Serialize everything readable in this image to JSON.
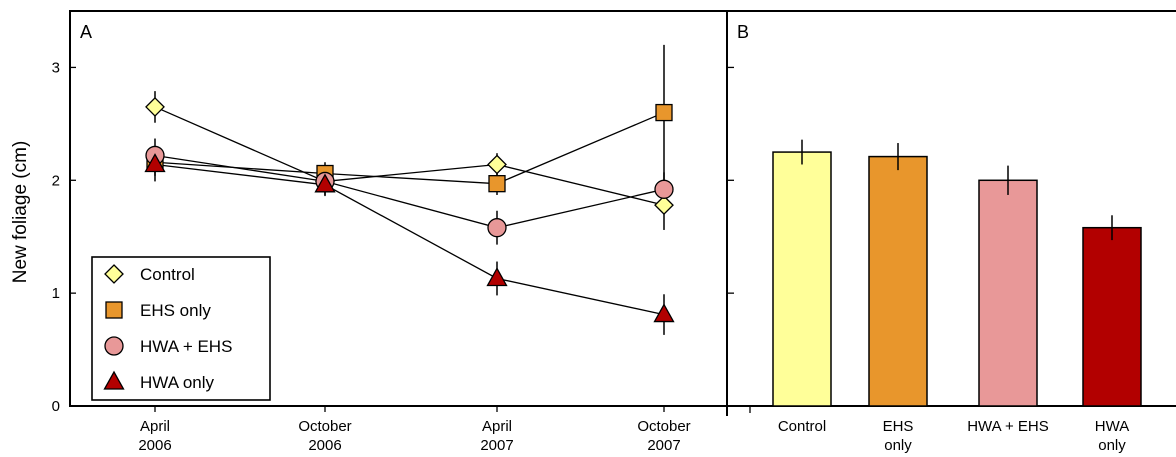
{
  "ylabel": "New foliage (cm)",
  "chart_data": [
    {
      "panel": "A",
      "type": "line",
      "ylabel": "New foliage (cm)",
      "ylim": [
        0,
        3.5
      ],
      "yticks": [
        "0",
        "1",
        "2",
        "3"
      ],
      "x_lines": [
        [
          "April",
          "2006"
        ],
        [
          "October",
          "2006"
        ],
        [
          "April",
          "2007"
        ],
        [
          "October",
          "2007"
        ]
      ],
      "legend": {
        "placement": "bottom-left"
      },
      "series": [
        {
          "name": "Control",
          "marker": "diamond",
          "color": "#FFFF99",
          "values": [
            2.65,
            1.99,
            2.14,
            1.78
          ],
          "errors": [
            0.14,
            0.12,
            0.1,
            0.22
          ]
        },
        {
          "name": "EHS only",
          "marker": "square",
          "color": "#E8962C",
          "values": [
            2.16,
            2.06,
            1.97,
            2.6
          ],
          "errors": [
            0.12,
            0.1,
            0.1,
            0.6
          ]
        },
        {
          "name": "HWA + EHS",
          "marker": "circle",
          "color": "#E89898",
          "values": [
            2.22,
            1.99,
            1.58,
            1.92
          ],
          "errors": [
            0.15,
            0.1,
            0.15,
            0.15
          ]
        },
        {
          "name": "HWA only",
          "marker": "triangle",
          "color": "#B20000",
          "values": [
            2.14,
            1.96,
            1.13,
            0.81
          ],
          "errors": [
            0.15,
            0.1,
            0.15,
            0.18
          ]
        }
      ]
    },
    {
      "panel": "B",
      "type": "bar",
      "ylim": [
        0,
        3.5
      ],
      "category_lines": [
        [
          "Control"
        ],
        [
          "EHS",
          "only"
        ],
        [
          "HWA + EHS"
        ],
        [
          "HWA",
          "only"
        ]
      ],
      "values": [
        2.25,
        2.21,
        2.0,
        1.58
      ],
      "errors": [
        0.11,
        0.12,
        0.13,
        0.11
      ],
      "colors": [
        "#FFFF99",
        "#E8962C",
        "#E89898",
        "#B20000"
      ]
    }
  ]
}
